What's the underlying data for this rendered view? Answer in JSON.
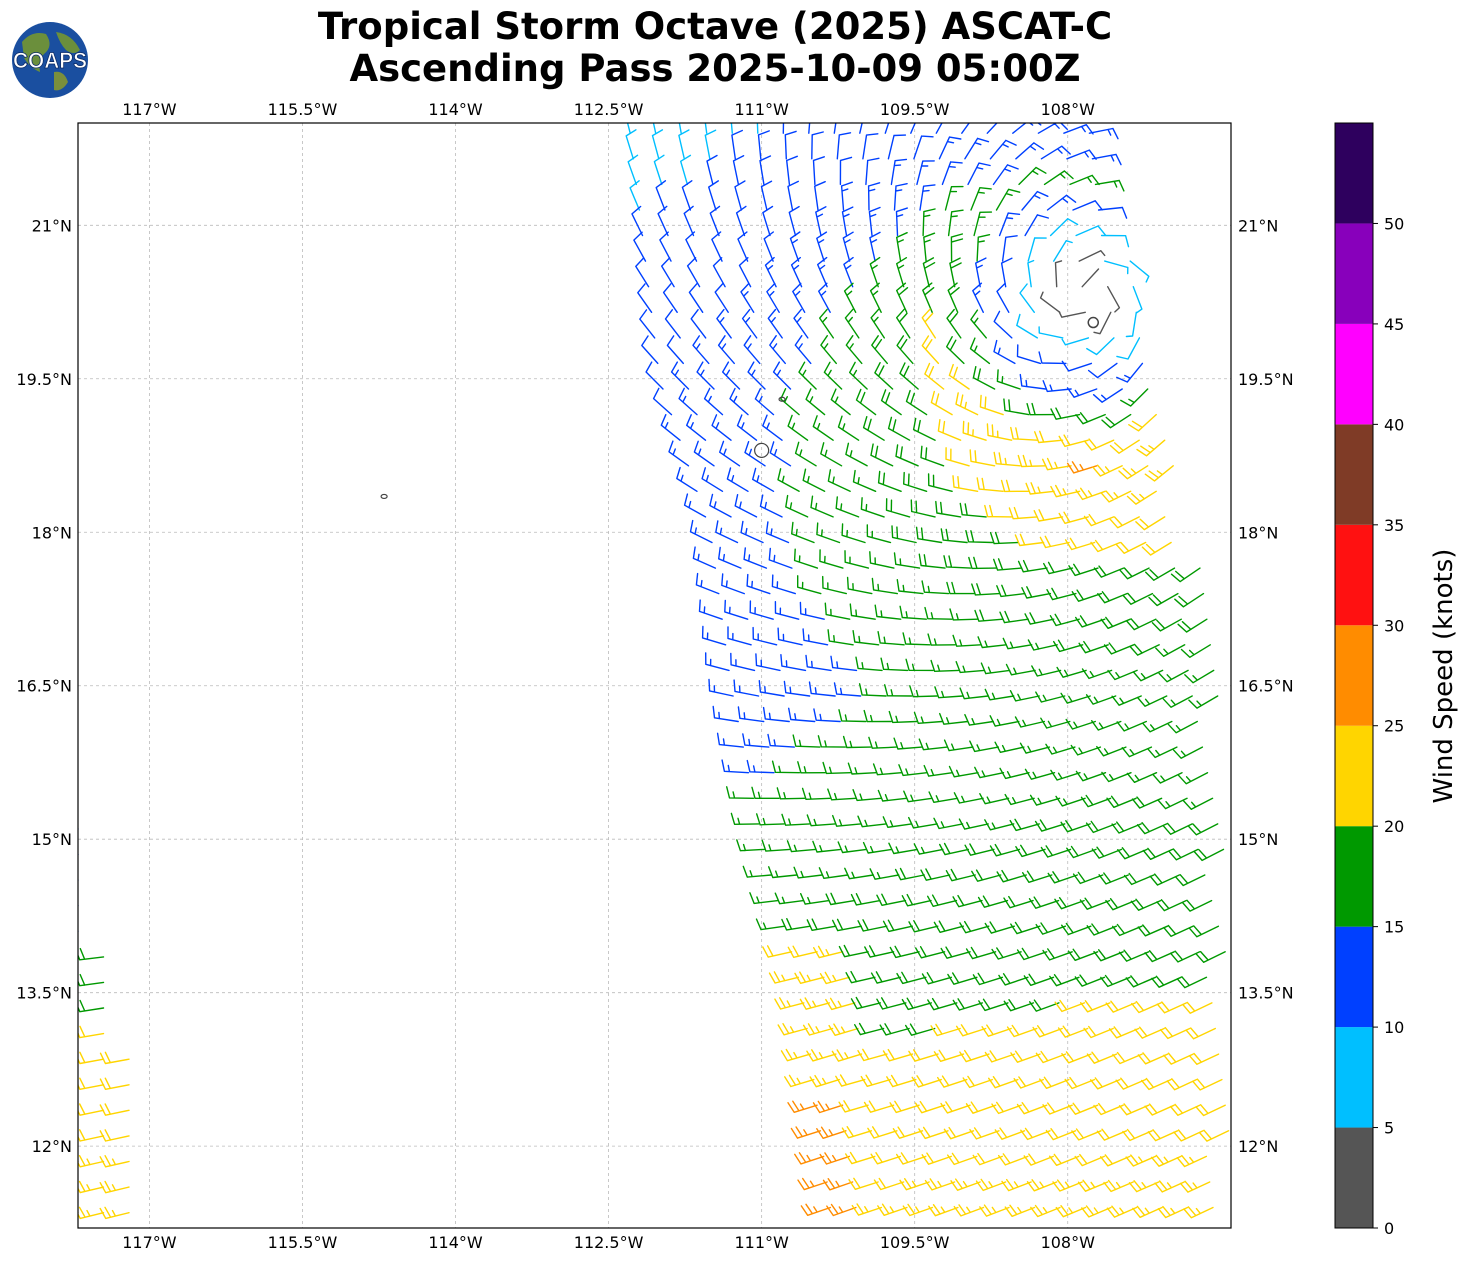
{
  "header": {
    "title_line1": "Tropical Storm Octave (2025) ASCAT-C",
    "title_line2": "Ascending Pass 2025-10-09 05:00Z",
    "logo_text": "COAPS"
  },
  "map": {
    "lon_range": [
      -117.7,
      -106.4
    ],
    "lat_range": [
      11.2,
      22.0
    ],
    "lon_ticks": [
      {
        "value": -117.0,
        "label": "117°W"
      },
      {
        "value": -115.5,
        "label": "115.5°W"
      },
      {
        "value": -114.0,
        "label": "114°W"
      },
      {
        "value": -112.5,
        "label": "112.5°W"
      },
      {
        "value": -111.0,
        "label": "111°W"
      },
      {
        "value": -109.5,
        "label": "109.5°W"
      },
      {
        "value": -108.0,
        "label": "108°W"
      }
    ],
    "lat_ticks": [
      {
        "value": 21.0,
        "label": "21°N"
      },
      {
        "value": 19.5,
        "label": "19.5°N"
      },
      {
        "value": 18.0,
        "label": "18°N"
      },
      {
        "value": 16.5,
        "label": "16.5°N"
      },
      {
        "value": 15.0,
        "label": "15°N"
      },
      {
        "value": 13.5,
        "label": "13.5°N"
      },
      {
        "value": 12.0,
        "label": "12°N"
      }
    ],
    "islands": [
      {
        "name": "isla-socorro",
        "lon": -111.0,
        "lat": 18.8
      },
      {
        "name": "isla-san-benedicto",
        "lon": -110.8,
        "lat": 19.3
      },
      {
        "name": "isla-clarion",
        "lon": -114.7,
        "lat": 18.35
      }
    ],
    "storm_center": {
      "lon": -107.75,
      "lat": 20.05
    }
  },
  "wind_swaths": {
    "swath_main": {
      "lat_min": 11.2,
      "lat_max": 22.0,
      "west_edge": [
        [
          22.0,
          -112.3
        ],
        [
          19.5,
          -112.0
        ],
        [
          18.0,
          -111.5
        ],
        [
          16.5,
          -111.3
        ],
        [
          15.0,
          -111.0
        ],
        [
          13.5,
          -110.6
        ],
        [
          11.2,
          -110.3
        ]
      ],
      "east_edge": [
        [
          22.0,
          -107.6
        ],
        [
          19.5,
          -107.2
        ],
        [
          17.0,
          -106.5
        ],
        [
          11.2,
          -106.4
        ]
      ]
    },
    "swath_west": {
      "lat_min": 11.3,
      "lat_max": 15.1,
      "west_lon": -117.7,
      "east_edge": [
        [
          15.1,
          -117.7
        ],
        [
          13.0,
          -117.2
        ],
        [
          11.3,
          -117.0
        ]
      ]
    }
  },
  "colorbar": {
    "label": "Wind Speed (knots)",
    "ticks": [
      0,
      5,
      10,
      15,
      20,
      25,
      30,
      35,
      40,
      45,
      50
    ],
    "range": [
      0,
      55
    ],
    "bins": [
      {
        "min": 0,
        "max": 5,
        "color": "#555555"
      },
      {
        "min": 5,
        "max": 10,
        "color": "#00bfff"
      },
      {
        "min": 10,
        "max": 15,
        "color": "#0040ff"
      },
      {
        "min": 15,
        "max": 20,
        "color": "#009900"
      },
      {
        "min": 20,
        "max": 25,
        "color": "#ffd500"
      },
      {
        "min": 25,
        "max": 30,
        "color": "#ff8c00"
      },
      {
        "min": 30,
        "max": 35,
        "color": "#ff1111"
      },
      {
        "min": 35,
        "max": 40,
        "color": "#7f3b26"
      },
      {
        "min": 40,
        "max": 45,
        "color": "#ff00ff"
      },
      {
        "min": 45,
        "max": 50,
        "color": "#8800bb"
      },
      {
        "min": 50,
        "max": 55,
        "color": "#2e005e"
      }
    ]
  }
}
